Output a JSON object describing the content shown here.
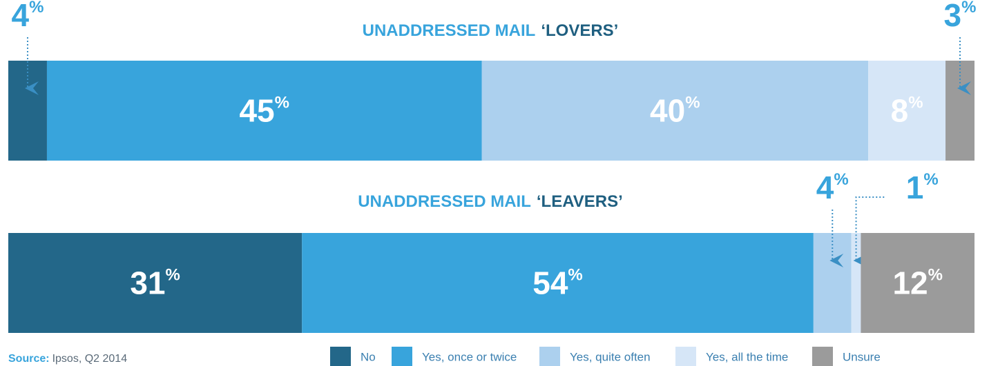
{
  "chart_data": {
    "type": "bar",
    "orientation": "horizontal",
    "stacked": true,
    "unit": "%",
    "categories": [
      [
        "UNADDRESSED MAIL",
        "‘LOVERS’"
      ],
      [
        "UNADDRESSED MAIL",
        "‘LEAVERS’"
      ]
    ],
    "series": [
      {
        "name": "No",
        "color": "#236789",
        "values": [
          4,
          31
        ]
      },
      {
        "name": "Yes, once or twice",
        "color": "#38a4dc",
        "values": [
          45,
          54
        ]
      },
      {
        "name": "Yes, quite often",
        "color": "#acd0ee",
        "values": [
          40,
          4
        ]
      },
      {
        "name": "Yes, all the time",
        "color": "#d6e6f7",
        "values": [
          8,
          1
        ]
      },
      {
        "name": "Unsure",
        "color": "#9b9b9b",
        "values": [
          3,
          12
        ]
      }
    ],
    "source": {
      "label": "Source:",
      "text": "Ipsos, Q2 2014"
    }
  }
}
